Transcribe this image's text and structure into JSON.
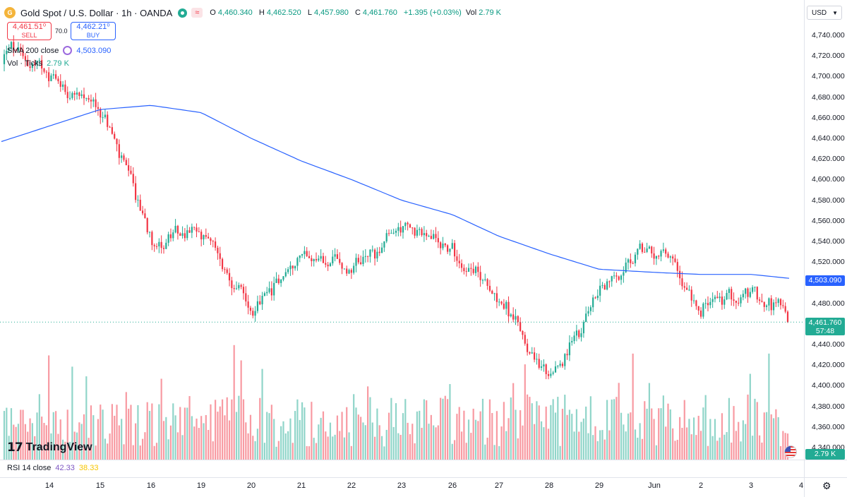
{
  "header": {
    "symbol_title": "Gold Spot / U.S. Dollar · 1h · OANDA",
    "ohlc": {
      "open_label": "O",
      "open": "4,460.340",
      "high_label": "H",
      "high": "4,462.520",
      "low_label": "L",
      "low": "4,457.980",
      "close_label": "C",
      "close": "4,461.760",
      "change": "+1.395 (+0.03%)",
      "vol_label": "Vol",
      "vol": "2.79 K"
    }
  },
  "trade": {
    "sell_price": "4,461.51⁰",
    "sell_label": "SELL",
    "spread": "70.0",
    "buy_price": "4,462.21⁰",
    "buy_label": "BUY"
  },
  "indicators": {
    "sma_label": "SMA 200 close",
    "sma_value": "4,503.090",
    "vol_label": "Vol · Ticks",
    "vol_value": "2.79 K",
    "rsi_label": "RSI 14 close",
    "rsi_value": "42.33",
    "rsi_ma_value": "38.33"
  },
  "price_scale": {
    "currency": "USD",
    "labels": [
      "4,740.000",
      "4,720.000",
      "4,700.000",
      "4,680.000",
      "4,660.000",
      "4,640.000",
      "4,620.000",
      "4,600.000",
      "4,580.000",
      "4,560.000",
      "4,540.000",
      "4,520.000",
      "4,480.000",
      "4,440.000",
      "4,420.000",
      "4,400.000",
      "4,380.000",
      "4,360.000",
      "4,340.000"
    ],
    "sma_tag": "4,503.090",
    "last_price_tag": "4,461.760",
    "countdown": "57:48",
    "vol_tag": "2.79 K"
  },
  "time_axis": [
    "14",
    "15",
    "16",
    "19",
    "20",
    "21",
    "22",
    "23",
    "26",
    "27",
    "28",
    "29",
    "Jun",
    "2",
    "3",
    "4"
  ],
  "branding": {
    "logo_text": "TradingView"
  },
  "colors": {
    "up": "#22ab94",
    "down": "#f23645",
    "sma": "#2962ff",
    "grid": "#f0f3fa"
  },
  "chart_data": {
    "type": "candlestick",
    "timeframe": "1h",
    "x_labels": [
      "14",
      "15",
      "16",
      "19",
      "20",
      "21",
      "22",
      "23",
      "26",
      "27",
      "28",
      "29",
      "Jun",
      "2",
      "3",
      "4"
    ],
    "ylim": [
      4330,
      4750
    ],
    "last_price": 4461.76,
    "approx_close_path": [
      {
        "x": "14",
        "close": 4700
      },
      {
        "x": "15",
        "close": 4665
      },
      {
        "x": "16",
        "close": 4540
      },
      {
        "x": "19",
        "close": 4550
      },
      {
        "x": "20",
        "close": 4470
      },
      {
        "x": "21",
        "close": 4530
      },
      {
        "x": "22",
        "close": 4510
      },
      {
        "x": "23",
        "close": 4555
      },
      {
        "x": "26",
        "close": 4530
      },
      {
        "x": "27",
        "close": 4485
      },
      {
        "x": "28",
        "close": 4400
      },
      {
        "x": "29",
        "close": 4500
      },
      {
        "x": "Jun",
        "close": 4535
      },
      {
        "x": "2",
        "close": 4475
      },
      {
        "x": "3",
        "close": 4490
      },
      {
        "x": "4",
        "close": 4461.76
      }
    ],
    "sma200_path": [
      {
        "x": "14",
        "value": 4652
      },
      {
        "x": "15",
        "value": 4668
      },
      {
        "x": "16",
        "value": 4672
      },
      {
        "x": "19",
        "value": 4665
      },
      {
        "x": "20",
        "value": 4640
      },
      {
        "x": "21",
        "value": 4618
      },
      {
        "x": "22",
        "value": 4600
      },
      {
        "x": "23",
        "value": 4580
      },
      {
        "x": "26",
        "value": 4566
      },
      {
        "x": "27",
        "value": 4545
      },
      {
        "x": "28",
        "value": 4528
      },
      {
        "x": "29",
        "value": 4513
      },
      {
        "x": "Jun",
        "value": 4510
      },
      {
        "x": "2",
        "value": 4508
      },
      {
        "x": "3",
        "value": 4508
      },
      {
        "x": "4",
        "value": 4503.09
      }
    ]
  }
}
